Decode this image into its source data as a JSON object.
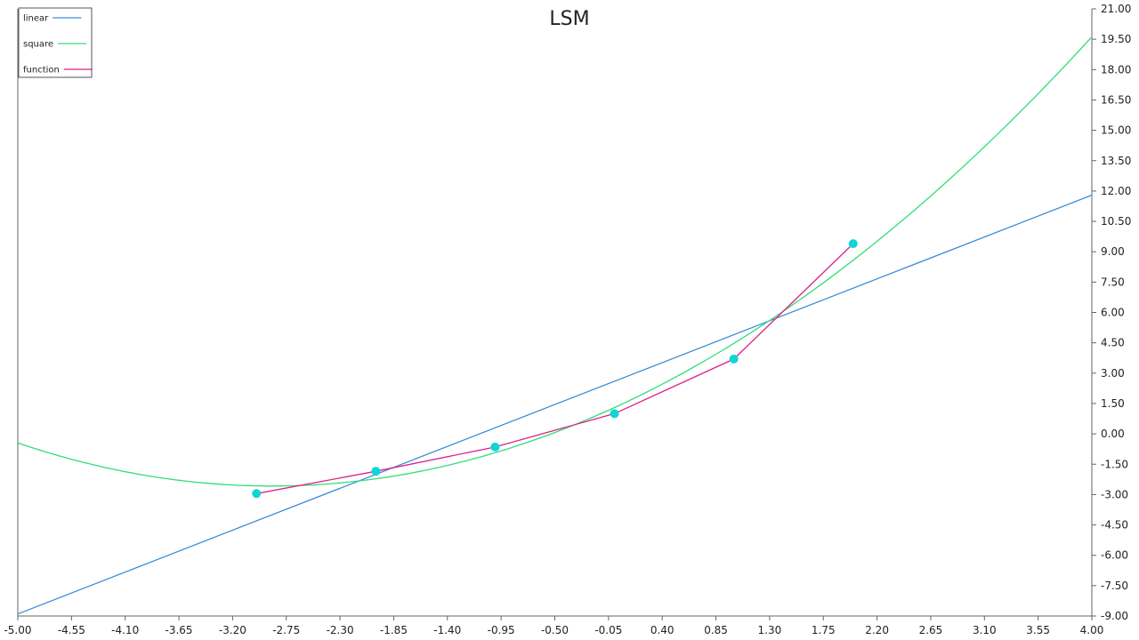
{
  "chart_data": {
    "type": "line",
    "title": "LSM",
    "xlim": [
      -5.0,
      4.0
    ],
    "ylim": [
      -9.0,
      21.0
    ],
    "x_ticks": [
      "-5.00",
      "-4.55",
      "-4.10",
      "-3.65",
      "-3.20",
      "-2.75",
      "-2.30",
      "-1.85",
      "-1.40",
      "-0.95",
      "-0.50",
      "-0.05",
      "0.40",
      "0.85",
      "1.30",
      "1.75",
      "2.20",
      "2.65",
      "3.10",
      "3.55",
      "4.00"
    ],
    "y_ticks": [
      "21.00",
      "19.50",
      "18.00",
      "16.50",
      "15.00",
      "13.50",
      "12.00",
      "10.50",
      "9.00",
      "7.50",
      "6.00",
      "4.50",
      "3.00",
      "1.50",
      "0.00",
      "-1.50",
      "-3.00",
      "-4.50",
      "-6.00",
      "-7.50",
      "-9.00"
    ],
    "legend": {
      "position": "top-left",
      "entries": [
        "linear",
        "square",
        "function"
      ]
    },
    "grid": false,
    "series": [
      {
        "name": "linear",
        "color": "#3a8fd8",
        "x": [
          -5.0,
          4.0
        ],
        "y": [
          -8.9,
          11.8
        ]
      },
      {
        "name": "square",
        "color": "#33dd77",
        "quadratic": {
          "a": 0.47,
          "b": 2.7,
          "c": 1.3
        },
        "domain": [
          -5.0,
          4.0
        ]
      },
      {
        "name": "function",
        "color": "#dd2288",
        "marker_color": "#11d4d4",
        "x": [
          -3.0,
          -2.0,
          -1.0,
          0.0,
          1.0,
          2.0
        ],
        "y": [
          -2.95,
          -1.85,
          -0.65,
          1.0,
          3.7,
          9.4
        ]
      }
    ]
  }
}
